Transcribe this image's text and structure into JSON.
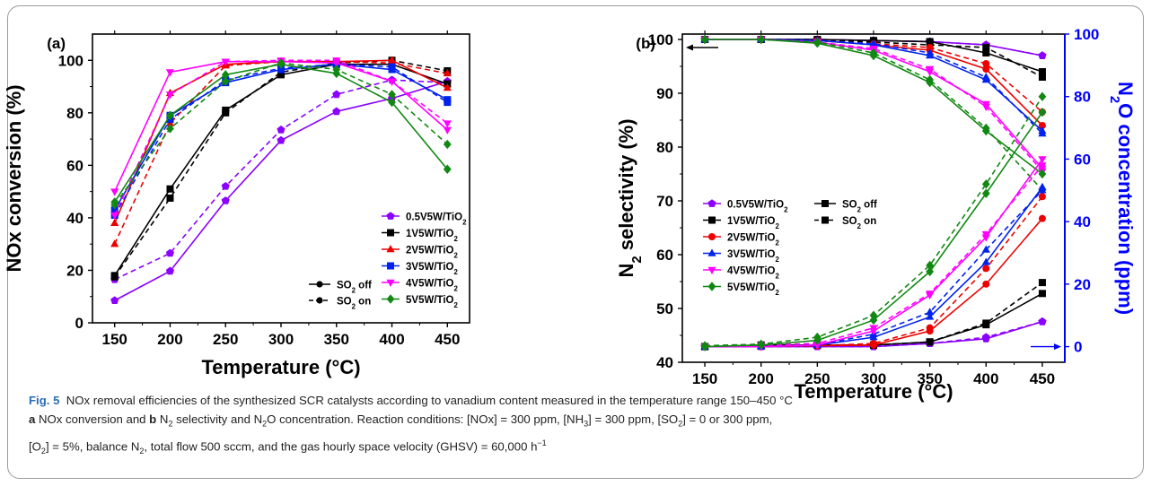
{
  "colors": {
    "0.5V5W/TiO2": "#8b00ff",
    "1V5W/TiO2": "#000000",
    "2V5W/TiO2": "#ee0000",
    "3V5W/TiO2": "#0022ee",
    "4V5W/TiO2": "#ff00ff",
    "5V5W/TiO2": "#118811",
    "right_axis": "#0000ff"
  },
  "chart_data": [
    {
      "panel": "(a)",
      "type": "line",
      "xlabel": "Temperature (°C)",
      "ylabel": "NOx conversion (%)",
      "x": [
        150,
        200,
        250,
        300,
        350,
        400,
        450
      ],
      "xticks": [
        "150",
        "200",
        "250",
        "300",
        "350",
        "400",
        "450"
      ],
      "yticks": [
        "0",
        "20",
        "40",
        "60",
        "80",
        "100"
      ],
      "xlim": [
        130,
        470
      ],
      "ylim": [
        0,
        110
      ],
      "legend_series": [
        "0.5V5W/TiO2",
        "1V5W/TiO2",
        "2V5W/TiO2",
        "3V5W/TiO2",
        "4V5W/TiO2",
        "5V5W/TiO2"
      ],
      "legend_style": [
        {
          "label": "SO2 off",
          "dash": false
        },
        {
          "label": "SO2 on",
          "dash": true
        }
      ],
      "series": [
        {
          "name": "0.5V5W/TiO2",
          "marker": "pentagon",
          "off": [
            8.5,
            19.7,
            46.5,
            69.5,
            80.5,
            85.5,
            92
          ],
          "on": [
            16.5,
            26.5,
            52,
            73.5,
            87,
            92.5,
            91.5
          ]
        },
        {
          "name": "1V5W/TiO2",
          "marker": "square",
          "off": [
            18,
            51,
            81,
            94.5,
            98.5,
            98.5,
            91
          ],
          "on": [
            17.5,
            47.5,
            80,
            95.5,
            99,
            100,
            96
          ]
        },
        {
          "name": "2V5W/TiO2",
          "marker": "triangle",
          "off": [
            38,
            87.5,
            98.5,
            99.5,
            99.5,
            100,
            89.5
          ],
          "on": [
            30,
            76,
            98,
            99.5,
            99.5,
            99,
            95
          ]
        },
        {
          "name": "3V5W/TiO2",
          "marker": "square",
          "off": [
            43,
            79,
            91.5,
            96.5,
            98.5,
            96.5,
            85
          ],
          "on": [
            41,
            77.5,
            92.5,
            97,
            98.5,
            97.5,
            84
          ]
        },
        {
          "name": "4V5W/TiO2",
          "marker": "down-triangle",
          "off": [
            50,
            95.5,
            99.5,
            99.5,
            99,
            92,
            73.5
          ],
          "on": [
            41,
            87,
            99.5,
            100,
            100,
            92,
            76
          ]
        },
        {
          "name": "5V5W/TiO2",
          "marker": "diamond",
          "off": [
            46,
            79,
            94.5,
            98.5,
            95,
            84,
            58.5
          ],
          "on": [
            45,
            74,
            92,
            99,
            96.5,
            87,
            68
          ]
        }
      ]
    },
    {
      "panel": "(b)",
      "type": "line",
      "xlabel": "Temperature (°C)",
      "ylabel": "N2 selectivity (%)",
      "y2label": "N2O concentration (ppm)",
      "x": [
        150,
        200,
        250,
        300,
        350,
        400,
        450
      ],
      "xticks": [
        "150",
        "200",
        "250",
        "300",
        "350",
        "400",
        "450"
      ],
      "yticks": [
        "40",
        "50",
        "60",
        "70",
        "80",
        "90",
        "100"
      ],
      "y2ticks": [
        "0",
        "20",
        "40",
        "60",
        "80",
        "100"
      ],
      "xlim": [
        130,
        470
      ],
      "ylim": [
        40,
        101
      ],
      "y2lim": [
        -5,
        100
      ],
      "legend_series": [
        "0.5V5W/TiO2",
        "1V5W/TiO2",
        "2V5W/TiO2",
        "3V5W/TiO2",
        "4V5W/TiO2",
        "5V5W/TiO2"
      ],
      "legend_style": [
        {
          "label": "SO2 off",
          "dash": false
        },
        {
          "label": "SO2 on",
          "dash": true
        }
      ],
      "selectivity": [
        {
          "name": "0.5V5W/TiO2",
          "marker": "pentagon",
          "off": [
            100,
            100,
            100,
            99.8,
            99.6,
            99,
            97
          ],
          "on": [
            100,
            100,
            100,
            99.8,
            99.6,
            99,
            97
          ]
        },
        {
          "name": "1V5W/TiO2",
          "marker": "square",
          "off": [
            100,
            100,
            100,
            99.8,
            99.6,
            97.5,
            94
          ],
          "on": [
            100,
            100,
            100,
            99.5,
            99,
            98.5,
            93
          ]
        },
        {
          "name": "2V5W/TiO2",
          "marker": "circle",
          "off": [
            100,
            100,
            99.8,
            99,
            98,
            94.5,
            84
          ],
          "on": [
            100,
            100,
            99.8,
            99.2,
            98.5,
            95.5,
            86.5
          ]
        },
        {
          "name": "3V5W/TiO2",
          "marker": "triangle",
          "off": [
            100,
            100,
            99.8,
            99,
            97,
            92.5,
            83
          ],
          "on": [
            100,
            100,
            99.8,
            99.2,
            97.5,
            93,
            82.5
          ]
        },
        {
          "name": "4V5W/TiO2",
          "marker": "down-triangle",
          "off": [
            100,
            100,
            99.5,
            98,
            94,
            88,
            76
          ],
          "on": [
            100,
            100,
            99.5,
            98.3,
            94.5,
            87.5,
            75.5
          ]
        },
        {
          "name": "5V5W/TiO2",
          "marker": "diamond",
          "off": [
            100,
            100,
            99.3,
            97,
            92,
            83,
            75
          ],
          "on": [
            100,
            100,
            99.5,
            97.5,
            92.5,
            83.5,
            72
          ]
        }
      ],
      "n2o": [
        {
          "name": "0.5V5W/TiO2",
          "marker": "pentagon",
          "off": [
            0,
            0,
            0,
            0,
            1,
            2.5,
            8
          ],
          "on": [
            0,
            0,
            0,
            0,
            1,
            3,
            8
          ]
        },
        {
          "name": "1V5W/TiO2",
          "marker": "square",
          "off": [
            0,
            0.5,
            0.5,
            0.5,
            1.5,
            7,
            17
          ],
          "on": [
            0,
            0.5,
            0.5,
            0.5,
            1.5,
            7.5,
            20.5
          ]
        },
        {
          "name": "2V5W/TiO2",
          "marker": "circle",
          "off": [
            0,
            0,
            0.3,
            0.5,
            5,
            20,
            41
          ],
          "on": [
            0,
            0,
            0.3,
            1,
            6,
            25,
            48
          ]
        },
        {
          "name": "3V5W/TiO2",
          "marker": "triangle",
          "off": [
            0,
            0,
            0.5,
            3,
            9.5,
            27,
            51
          ],
          "on": [
            0,
            0,
            0.5,
            4,
            11,
            31,
            50
          ]
        },
        {
          "name": "4V5W/TiO2",
          "marker": "down-triangle",
          "off": [
            0,
            0,
            0.5,
            5,
            16.5,
            35,
            60
          ],
          "on": [
            0,
            0.5,
            1,
            6,
            17,
            36,
            58
          ]
        },
        {
          "name": "5V5W/TiO2",
          "marker": "diamond",
          "off": [
            0,
            0.5,
            2,
            8.5,
            24,
            49,
            75
          ],
          "on": [
            0.3,
            0.8,
            3,
            10,
            26,
            52,
            80
          ]
        }
      ]
    }
  ],
  "caption": {
    "fig_label": "Fig. 5",
    "line1": "NOx removal efficiencies of the synthesized SCR catalysts according to vanadium content measured in the temperature range 150–450 °C",
    "line2": "NOx conversion and",
    "line2b": "N",
    "line2c": " selectivity and N",
    "line2d": "O concentration. Reaction conditions: [NOx] = 300 ppm, [NH",
    "line2e": "] = 300 ppm, [SO",
    "line2f": "] = 0 or 300 ppm,",
    "line3a": "[O",
    "line3b": "] = 5%, balance N",
    "line3c": ", total flow 500 sccm, and the gas hourly space velocity (GHSV) = 60,000 h",
    "line3d": "−1",
    "a": "a",
    "b": "b",
    "sub2": "2",
    "sub3": "3"
  }
}
